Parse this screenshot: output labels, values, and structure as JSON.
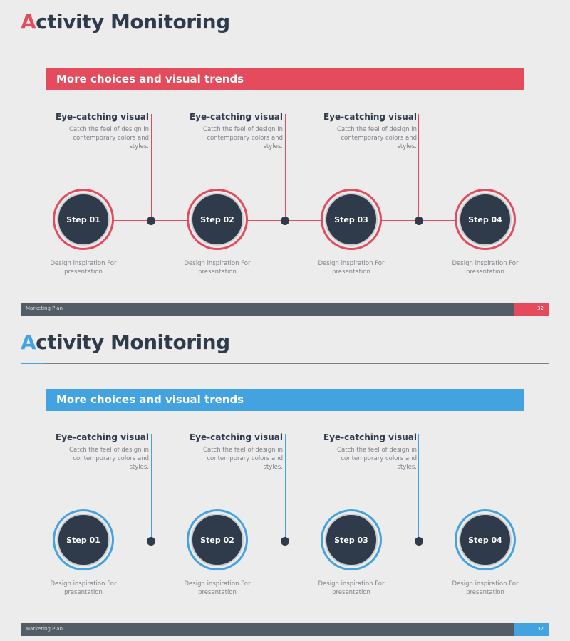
{
  "slides": [
    {
      "accent": "#e44b5c",
      "title_first": "A",
      "title_rest": "ctivity Monitoring",
      "banner": "More choices and visual trends",
      "features": [
        {
          "heading": "Eye-catching visual",
          "desc": [
            "Catch the feel of design in",
            "contemporary colors and",
            "styles."
          ]
        },
        {
          "heading": "Eye-catching visual",
          "desc": [
            "Catch the feel of design in",
            "contemporary colors and",
            "styles."
          ]
        },
        {
          "heading": "Eye-catching visual",
          "desc": [
            "Catch the feel of design in",
            "contemporary colors and",
            "styles."
          ]
        }
      ],
      "steps": [
        {
          "label": "Step 01",
          "caption": [
            "Design inspiration For",
            "presentation"
          ]
        },
        {
          "label": "Step 02",
          "caption": [
            "Design inspiration For",
            "presentation"
          ]
        },
        {
          "label": "Step 03",
          "caption": [
            "Design inspiration For",
            "presentation"
          ]
        },
        {
          "label": "Step 04",
          "caption": [
            "Design inspiration For",
            "presentation"
          ]
        }
      ],
      "footer_label": "Marketing Plan",
      "page_number": "32"
    },
    {
      "accent": "#43a3e0",
      "title_first": "A",
      "title_rest": "ctivity Monitoring",
      "banner": "More choices and visual trends",
      "features": [
        {
          "heading": "Eye-catching visual",
          "desc": [
            "Catch the feel of design in",
            "contemporary colors and",
            "styles."
          ]
        },
        {
          "heading": "Eye-catching visual",
          "desc": [
            "Catch the feel of design in",
            "contemporary colors and",
            "styles."
          ]
        },
        {
          "heading": "Eye-catching visual",
          "desc": [
            "Catch the feel of design in",
            "contemporary colors and",
            "styles."
          ]
        }
      ],
      "steps": [
        {
          "label": "Step 01",
          "caption": [
            "Design inspiration For",
            "presentation"
          ]
        },
        {
          "label": "Step 02",
          "caption": [
            "Design inspiration For",
            "presentation"
          ]
        },
        {
          "label": "Step 03",
          "caption": [
            "Design inspiration For",
            "presentation"
          ]
        },
        {
          "label": "Step 04",
          "caption": [
            "Design inspiration For",
            "presentation"
          ]
        }
      ],
      "footer_label": "Marketing Plan",
      "page_number": "32"
    }
  ]
}
